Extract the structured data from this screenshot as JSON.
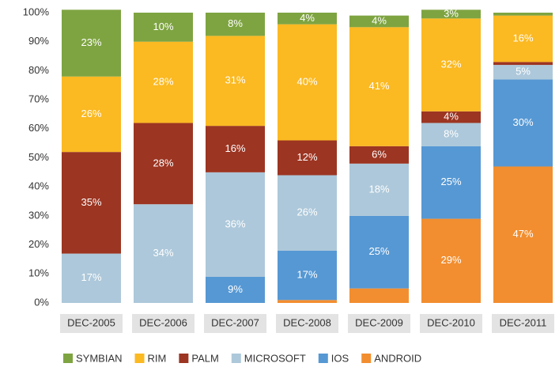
{
  "chart_data": {
    "type": "stacked_bar_100",
    "categories": [
      "DEC-2005",
      "DEC-2006",
      "DEC-2007",
      "DEC-2008",
      "DEC-2009",
      "DEC-2010",
      "DEC-2011"
    ],
    "series": [
      {
        "name": "ANDROID",
        "color": "#f28e2f",
        "values": [
          0,
          0,
          0,
          1,
          5,
          29,
          47
        ],
        "value_labels": [
          null,
          null,
          null,
          null,
          null,
          "29%",
          "47%"
        ]
      },
      {
        "name": "IOS",
        "color": "#5698d3",
        "values": [
          0,
          0,
          9,
          17,
          25,
          25,
          30
        ],
        "value_labels": [
          null,
          null,
          "9%",
          "17%",
          "25%",
          "25%",
          "30%"
        ]
      },
      {
        "name": "MICROSOFT",
        "color": "#adc8da",
        "values": [
          17,
          34,
          36,
          26,
          18,
          8,
          5
        ],
        "value_labels": [
          "17%",
          "34%",
          "36%",
          "26%",
          "18%",
          "8%",
          "5%"
        ]
      },
      {
        "name": "PALM",
        "color": "#9c3522",
        "values": [
          35,
          28,
          16,
          12,
          6,
          4,
          1
        ],
        "value_labels": [
          "35%",
          "28%",
          "16%",
          "12%",
          "6%",
          "4%",
          null
        ]
      },
      {
        "name": "RIM",
        "color": "#fbb922",
        "values": [
          26,
          28,
          31,
          40,
          41,
          32,
          16
        ],
        "value_labels": [
          "26%",
          "28%",
          "31%",
          "40%",
          "41%",
          "32%",
          "16%"
        ]
      },
      {
        "name": "SYMBIAN",
        "color": "#7ea441",
        "values": [
          23,
          10,
          8,
          4,
          4,
          3,
          1
        ],
        "value_labels": [
          "23%",
          "10%",
          "8%",
          "4%",
          "4%",
          "3%",
          null
        ]
      }
    ],
    "ylim": [
      0,
      100
    ],
    "yticks": [
      {
        "value": 0,
        "label": "0%"
      },
      {
        "value": 10,
        "label": "10%"
      },
      {
        "value": 20,
        "label": "20%"
      },
      {
        "value": 30,
        "label": "30%"
      },
      {
        "value": 40,
        "label": "40%"
      },
      {
        "value": 50,
        "label": "50%"
      },
      {
        "value": 60,
        "label": "60%"
      },
      {
        "value": 70,
        "label": "70%"
      },
      {
        "value": 80,
        "label": "80%"
      },
      {
        "value": 90,
        "label": "90%"
      },
      {
        "value": 100,
        "label": "100%"
      }
    ],
    "legend_order": [
      5,
      4,
      3,
      2,
      1,
      0
    ],
    "legend": "bottom"
  }
}
